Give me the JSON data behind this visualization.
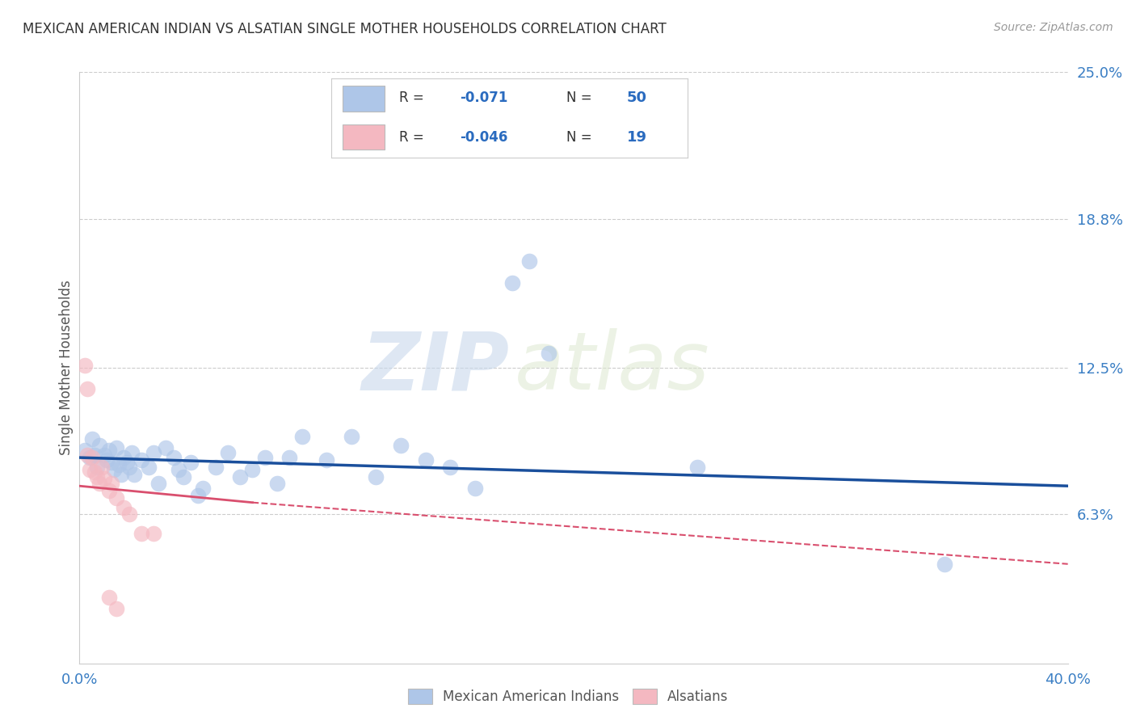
{
  "title": "MEXICAN AMERICAN INDIAN VS ALSATIAN SINGLE MOTHER HOUSEHOLDS CORRELATION CHART",
  "source": "Source: ZipAtlas.com",
  "ylabel": "Single Mother Households",
  "xlim": [
    0.0,
    0.4
  ],
  "ylim": [
    0.0,
    0.25
  ],
  "yticks": [
    0.0,
    0.063,
    0.125,
    0.188,
    0.25
  ],
  "ytick_labels": [
    "",
    "6.3%",
    "12.5%",
    "18.8%",
    "25.0%"
  ],
  "xticks": [
    0.0,
    0.1,
    0.2,
    0.3,
    0.4
  ],
  "xtick_labels": [
    "0.0%",
    "",
    "",
    "",
    "40.0%"
  ],
  "legend1_r": "-0.071",
  "legend1_n": "50",
  "legend2_r": "-0.046",
  "legend2_n": "19",
  "blue_color": "#aec6e8",
  "pink_color": "#f4b8c1",
  "blue_line_color": "#1a4f9c",
  "pink_line_color": "#d94f6e",
  "blue_scatter": [
    [
      0.002,
      0.09
    ],
    [
      0.004,
      0.087
    ],
    [
      0.005,
      0.095
    ],
    [
      0.006,
      0.088
    ],
    [
      0.007,
      0.083
    ],
    [
      0.008,
      0.092
    ],
    [
      0.01,
      0.088
    ],
    [
      0.011,
      0.086
    ],
    [
      0.012,
      0.09
    ],
    [
      0.013,
      0.085
    ],
    [
      0.014,
      0.082
    ],
    [
      0.015,
      0.091
    ],
    [
      0.016,
      0.084
    ],
    [
      0.017,
      0.08
    ],
    [
      0.018,
      0.087
    ],
    [
      0.019,
      0.085
    ],
    [
      0.02,
      0.083
    ],
    [
      0.021,
      0.089
    ],
    [
      0.022,
      0.08
    ],
    [
      0.025,
      0.086
    ],
    [
      0.028,
      0.083
    ],
    [
      0.03,
      0.089
    ],
    [
      0.032,
      0.076
    ],
    [
      0.035,
      0.091
    ],
    [
      0.038,
      0.087
    ],
    [
      0.04,
      0.082
    ],
    [
      0.042,
      0.079
    ],
    [
      0.045,
      0.085
    ],
    [
      0.048,
      0.071
    ],
    [
      0.05,
      0.074
    ],
    [
      0.055,
      0.083
    ],
    [
      0.06,
      0.089
    ],
    [
      0.065,
      0.079
    ],
    [
      0.07,
      0.082
    ],
    [
      0.075,
      0.087
    ],
    [
      0.08,
      0.076
    ],
    [
      0.085,
      0.087
    ],
    [
      0.09,
      0.096
    ],
    [
      0.1,
      0.086
    ],
    [
      0.11,
      0.096
    ],
    [
      0.12,
      0.079
    ],
    [
      0.13,
      0.092
    ],
    [
      0.14,
      0.086
    ],
    [
      0.15,
      0.083
    ],
    [
      0.16,
      0.074
    ],
    [
      0.175,
      0.161
    ],
    [
      0.182,
      0.17
    ],
    [
      0.19,
      0.131
    ],
    [
      0.25,
      0.083
    ],
    [
      0.35,
      0.042
    ]
  ],
  "pink_scatter": [
    [
      0.002,
      0.126
    ],
    [
      0.003,
      0.116
    ],
    [
      0.003,
      0.088
    ],
    [
      0.004,
      0.082
    ],
    [
      0.005,
      0.087
    ],
    [
      0.006,
      0.081
    ],
    [
      0.007,
      0.079
    ],
    [
      0.008,
      0.076
    ],
    [
      0.009,
      0.083
    ],
    [
      0.01,
      0.078
    ],
    [
      0.012,
      0.073
    ],
    [
      0.013,
      0.076
    ],
    [
      0.015,
      0.07
    ],
    [
      0.018,
      0.066
    ],
    [
      0.02,
      0.063
    ],
    [
      0.025,
      0.055
    ],
    [
      0.03,
      0.055
    ],
    [
      0.012,
      0.028
    ],
    [
      0.015,
      0.023
    ]
  ],
  "blue_line": [
    [
      0.0,
      0.087
    ],
    [
      0.4,
      0.075
    ]
  ],
  "pink_line_solid": [
    [
      0.0,
      0.075
    ],
    [
      0.07,
      0.068
    ]
  ],
  "pink_line_dash": [
    [
      0.07,
      0.068
    ],
    [
      0.4,
      0.042
    ]
  ],
  "watermark_zip": "ZIP",
  "watermark_atlas": "atlas",
  "background_color": "#ffffff"
}
